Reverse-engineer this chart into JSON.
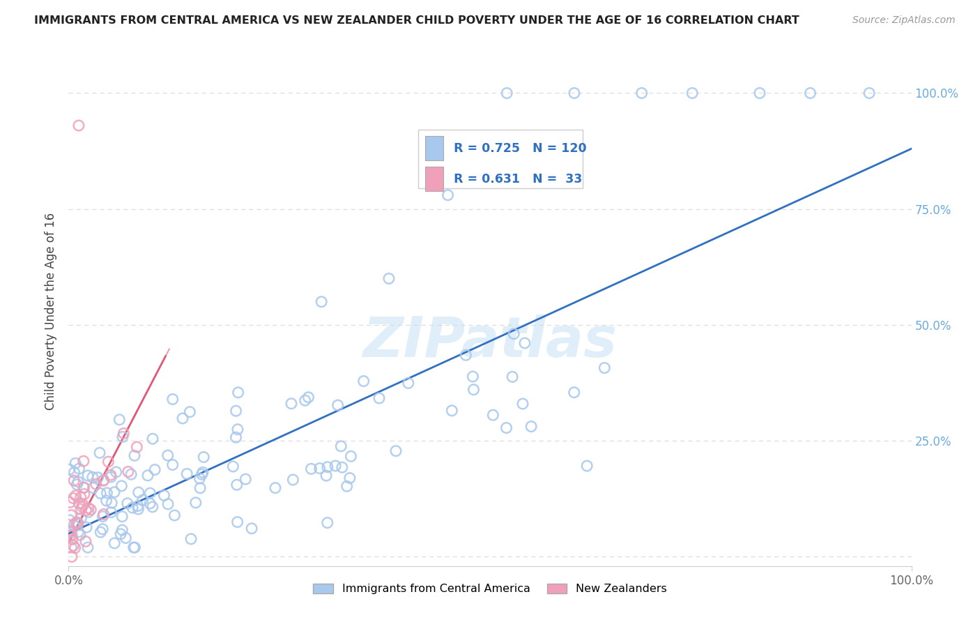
{
  "title": "IMMIGRANTS FROM CENTRAL AMERICA VS NEW ZEALANDER CHILD POVERTY UNDER THE AGE OF 16 CORRELATION CHART",
  "source": "Source: ZipAtlas.com",
  "ylabel": "Child Poverty Under the Age of 16",
  "xlim": [
    0.0,
    1.0
  ],
  "ylim": [
    -0.02,
    1.08
  ],
  "yticks": [
    0.0,
    0.25,
    0.5,
    0.75,
    1.0
  ],
  "ytick_labels": [
    "",
    "25.0%",
    "50.0%",
    "75.0%",
    "100.0%"
  ],
  "legend_blue_r": "0.725",
  "legend_blue_n": "120",
  "legend_pink_r": "0.631",
  "legend_pink_n": "33",
  "blue_color": "#A8C8ED",
  "pink_color": "#F0A0B8",
  "blue_line_color": "#3070C0",
  "pink_line_color": "#E05878",
  "pink_dash_color": "#E0A0B0",
  "watermark": "ZIPatlas",
  "background_color": "#FFFFFF",
  "title_color": "#222222",
  "source_color": "#999999",
  "axis_color": "#CCCCCC",
  "grid_color": "#DDDDDD",
  "right_tick_color": "#6AABDD",
  "legend_text_color": "#3070C0"
}
